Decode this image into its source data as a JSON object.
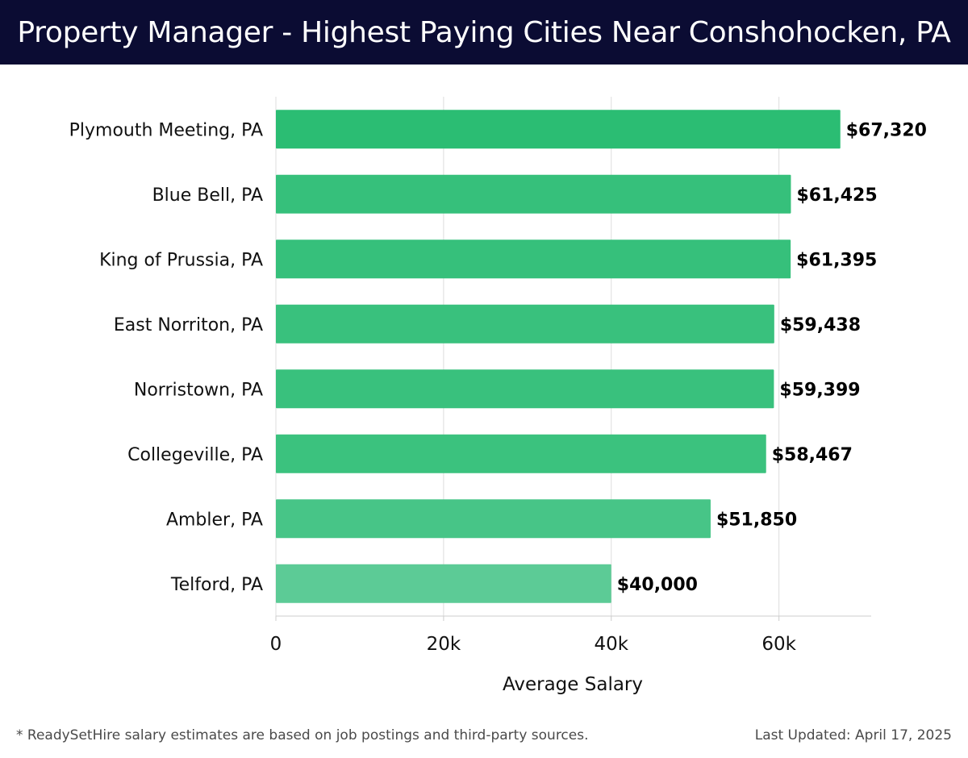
{
  "header": {
    "title": "Property Manager - Highest Paying Cities Near Conshohocken, PA"
  },
  "footer": {
    "note": "* ReadySetHire salary estimates are based on job postings and third-party sources.",
    "updated": "Last Updated: April 17, 2025"
  },
  "colors": {
    "header_bg": "#0b0c33",
    "bar_dark": "#2bbd73",
    "bar_light": "#5ccb96",
    "grid": "#dddddd",
    "axis": "#cccccc"
  },
  "chart_data": {
    "type": "bar",
    "orientation": "horizontal",
    "categories": [
      "Plymouth Meeting, PA",
      "Blue Bell, PA",
      "King of Prussia, PA",
      "East Norriton, PA",
      "Norristown, PA",
      "Collegeville, PA",
      "Ambler, PA",
      "Telford, PA"
    ],
    "values": [
      67320,
      61425,
      61395,
      59438,
      59399,
      58467,
      51850,
      40000
    ],
    "value_labels": [
      "$67,320",
      "$61,425",
      "$61,395",
      "$59,438",
      "$59,399",
      "$58,467",
      "$51,850",
      "$40,000"
    ],
    "xlabel": "Average Salary",
    "ylabel": "",
    "xlim": [
      0,
      71000
    ],
    "x_ticks": [
      0,
      20000,
      40000,
      60000
    ],
    "x_tick_labels": [
      "0",
      "20k",
      "40k",
      "60k"
    ],
    "grid": true
  }
}
